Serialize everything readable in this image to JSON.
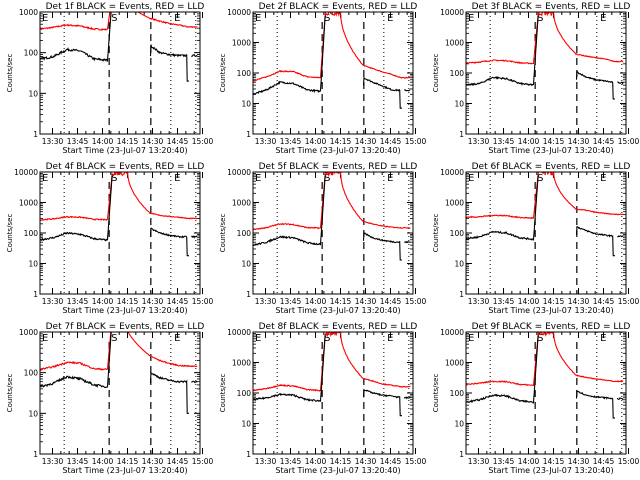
{
  "chart_data": {
    "type": "line",
    "layout": "3x3 grid",
    "shared": {
      "xlabel": "Start Time (23-Jul-07 13:20:40)",
      "ylabel": "Counts/sec",
      "x_tick_labels": [
        "13:30",
        "13:45",
        "14:00",
        "14:15",
        "14:30",
        "14:45",
        "15:00"
      ],
      "x_ticks_min": [
        30,
        45,
        60,
        75,
        90,
        105,
        120
      ],
      "x_range_min": [
        22.5,
        118.5
      ],
      "x_units": "minutes after 13:00 UT",
      "y_scale": "log",
      "series_colors": {
        "events": "#000000",
        "lld": "#ff0000"
      },
      "legend_text": "BLACK = Events, RED = LLD",
      "vlines_dotted_min": [
        37,
        101,
        116
      ],
      "vlines_dashed_min": [
        64,
        89
      ],
      "markers": [
        "E",
        "S",
        "E"
      ]
    },
    "panels": [
      {
        "id": "1f",
        "title": "Det 1f BLACK = Events, RED = LLD",
        "ylim": [
          1,
          1000
        ],
        "y_tick_labels": [
          "1",
          "10",
          "100",
          "1000"
        ],
        "events_baseline": [
          70,
          80,
          120,
          110,
          70,
          65
        ],
        "lld_baseline": [
          380,
          420,
          480,
          450,
          380,
          370
        ],
        "events_post": [
          150,
          100,
          90,
          85,
          20,
          85
        ],
        "lld_post": [
          700,
          600,
          520,
          480,
          440,
          430
        ]
      },
      {
        "id": "2f",
        "title": "Det 2f BLACK = Events, RED = LLD",
        "ylim": [
          1,
          10000
        ],
        "y_tick_labels": [
          "1",
          "10",
          "100",
          "1000",
          "10000"
        ],
        "events_baseline": [
          20,
          28,
          50,
          45,
          28,
          25
        ],
        "lld_baseline": [
          55,
          75,
          115,
          110,
          75,
          70
        ],
        "events_post": [
          70,
          50,
          38,
          28,
          7,
          27
        ],
        "lld_post": [
          180,
          140,
          110,
          90,
          75,
          70
        ]
      },
      {
        "id": "3f",
        "title": "Det 3f BLACK = Events, RED = LLD",
        "ylim": [
          1,
          10000
        ],
        "y_tick_labels": [
          "1",
          "10",
          "100",
          "1000",
          "10000"
        ],
        "events_baseline": [
          40,
          45,
          72,
          65,
          45,
          40
        ],
        "lld_baseline": [
          210,
          230,
          260,
          255,
          215,
          205
        ],
        "events_post": [
          110,
          75,
          60,
          55,
          14,
          48
        ],
        "lld_post": [
          420,
          360,
          320,
          290,
          260,
          240
        ]
      },
      {
        "id": "4f",
        "title": "Det 4f BLACK = Events, RED = LLD",
        "ylim": [
          1,
          10000
        ],
        "y_tick_labels": [
          "1",
          "10",
          "100",
          "1000",
          "10000"
        ],
        "events_baseline": [
          60,
          70,
          100,
          90,
          65,
          58
        ],
        "lld_baseline": [
          270,
          290,
          340,
          330,
          280,
          270
        ],
        "events_post": [
          140,
          100,
          85,
          75,
          18,
          75
        ],
        "lld_post": [
          450,
          380,
          350,
          330,
          310,
          300
        ]
      },
      {
        "id": "5f",
        "title": "Det 5f BLACK = Events, RED = LLD",
        "ylim": [
          1,
          10000
        ],
        "y_tick_labels": [
          "1",
          "10",
          "100",
          "1000",
          "10000"
        ],
        "events_baseline": [
          40,
          50,
          75,
          70,
          48,
          42
        ],
        "lld_baseline": [
          130,
          150,
          200,
          190,
          150,
          145
        ],
        "events_post": [
          100,
          70,
          58,
          52,
          13,
          50
        ],
        "lld_post": [
          240,
          200,
          170,
          155,
          150,
          148
        ]
      },
      {
        "id": "6f",
        "title": "Det 6f BLACK = Events, RED = LLD",
        "ylim": [
          1,
          10000
        ],
        "y_tick_labels": [
          "1",
          "10",
          "100",
          "1000",
          "10000"
        ],
        "events_baseline": [
          65,
          75,
          110,
          100,
          70,
          62
        ],
        "lld_baseline": [
          330,
          340,
          380,
          370,
          320,
          310
        ],
        "events_post": [
          160,
          120,
          95,
          85,
          18,
          78
        ],
        "lld_post": [
          600,
          560,
          480,
          440,
          420,
          410
        ]
      },
      {
        "id": "7f",
        "title": "Det 7f BLACK = Events, RED = LLD",
        "ylim": [
          1,
          1000
        ],
        "y_tick_labels": [
          "1",
          "10",
          "100",
          "1000"
        ],
        "events_baseline": [
          45,
          55,
          80,
          70,
          50,
          45
        ],
        "lld_baseline": [
          120,
          140,
          180,
          170,
          125,
          120
        ],
        "events_post": [
          100,
          75,
          65,
          60,
          10,
          60
        ],
        "lld_post": [
          260,
          200,
          170,
          150,
          140,
          145
        ]
      },
      {
        "id": "8f",
        "title": "Det 8f BLACK = Events, RED = LLD",
        "ylim": [
          1,
          10000
        ],
        "y_tick_labels": [
          "1",
          "10",
          "100",
          "1000",
          "10000"
        ],
        "events_baseline": [
          60,
          70,
          90,
          85,
          60,
          55
        ],
        "lld_baseline": [
          120,
          140,
          180,
          170,
          130,
          120
        ],
        "events_post": [
          130,
          100,
          85,
          80,
          18,
          70
        ],
        "lld_post": [
          300,
          250,
          200,
          180,
          170,
          160
        ]
      },
      {
        "id": "9f",
        "title": "Det 9f BLACK = Events, RED = LLD",
        "ylim": [
          1,
          10000
        ],
        "y_tick_labels": [
          "1",
          "10",
          "100",
          "1000",
          "10000"
        ],
        "events_baseline": [
          50,
          60,
          85,
          80,
          55,
          50
        ],
        "lld_baseline": [
          190,
          210,
          240,
          235,
          190,
          180
        ],
        "events_post": [
          120,
          85,
          75,
          70,
          15,
          65
        ],
        "lld_post": [
          380,
          330,
          290,
          270,
          250,
          240
        ]
      }
    ]
  }
}
